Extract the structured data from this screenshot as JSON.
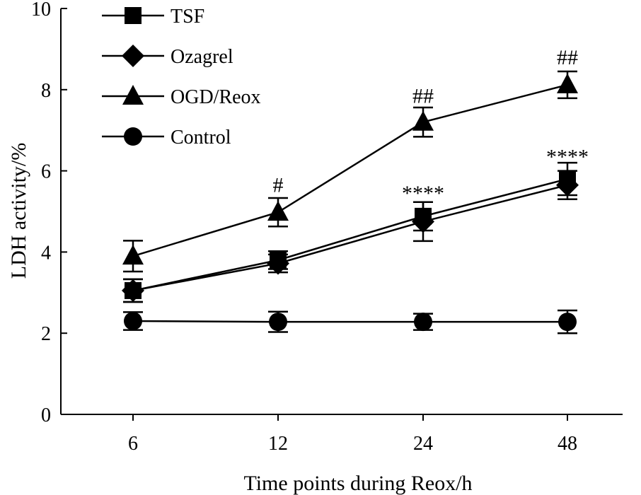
{
  "chart_data": {
    "type": "line",
    "title": "",
    "xlabel": "Time points during Reox/h",
    "ylabel": "LDH activity/%",
    "categories": [
      "6",
      "12",
      "24",
      "48"
    ],
    "ylim": [
      0,
      10
    ],
    "yticks": [
      "0",
      "2",
      "4",
      "6",
      "8",
      "10"
    ],
    "grid": false,
    "legend_position": "top-left",
    "series": [
      {
        "name": "TSF",
        "marker": "square",
        "values": [
          3.05,
          3.8,
          4.88,
          5.8
        ],
        "errors": [
          0.28,
          0.22,
          0.35,
          0.4
        ]
      },
      {
        "name": "Ozagrel",
        "marker": "diamond",
        "values": [
          3.05,
          3.72,
          4.75,
          5.65
        ],
        "errors": [
          0.28,
          0.22,
          0.48,
          0.35
        ]
      },
      {
        "name": "OGD/Reox",
        "marker": "triangle",
        "values": [
          3.9,
          4.98,
          7.2,
          8.12
        ],
        "errors": [
          0.38,
          0.35,
          0.36,
          0.33
        ]
      },
      {
        "name": "Control",
        "marker": "circle",
        "values": [
          2.3,
          2.28,
          2.28,
          2.28
        ],
        "errors": [
          0.22,
          0.25,
          0.2,
          0.28
        ]
      }
    ],
    "annotations": [
      {
        "text": "#",
        "category": "12",
        "y": 5.65
      },
      {
        "text": "##",
        "category": "24",
        "y": 7.85
      },
      {
        "text": "##",
        "category": "48",
        "y": 8.8
      },
      {
        "text": "****",
        "category": "24",
        "y": 5.45
      },
      {
        "text": "****",
        "category": "48",
        "y": 6.35
      }
    ]
  }
}
